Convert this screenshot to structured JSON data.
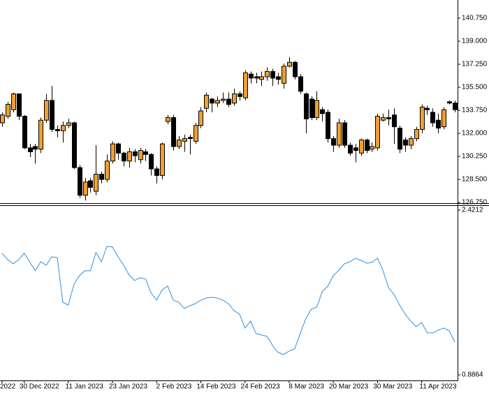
{
  "chart_data": [
    {
      "type": "candlestick",
      "up_color": "#f0a030",
      "down_color": "#000000",
      "outline_color": "#000000",
      "ylim": [
        126.7,
        142.13
      ],
      "yticks": [
        {
          "value": 140.75,
          "label": "140.750"
        },
        {
          "value": 139,
          "label": "139.000"
        },
        {
          "value": 137.25,
          "label": "137.250"
        },
        {
          "value": 135.5,
          "label": "135.500"
        },
        {
          "value": 133.75,
          "label": "133.750"
        },
        {
          "value": 132,
          "label": "132.000"
        },
        {
          "value": 130.25,
          "label": "130.250"
        },
        {
          "value": 128.5,
          "label": "128.500"
        },
        {
          "value": 126.75,
          "label": "126.750"
        }
      ],
      "open": [
        132.8,
        133.3,
        133.8,
        135.0,
        133.3,
        130.9,
        131.0,
        130.8,
        133.0,
        134.5,
        132.3,
        132.2,
        132.6,
        132.8,
        129.4,
        127.3,
        128.4,
        127.6,
        128.9,
        128.5,
        129.9,
        131.2,
        130.5,
        129.9,
        130.6,
        130.0,
        130.6,
        130.4,
        129.3,
        128.8,
        132.9,
        133.2,
        131.0,
        131.4,
        131.7,
        131.4,
        132.6,
        133.9,
        134.6,
        134.3,
        134.5,
        134.6,
        134.3,
        135.0,
        134.7,
        136.5,
        136.3,
        136.1,
        136.3,
        136.7,
        136.3,
        135.8,
        137.1,
        137.4,
        136.3,
        135.0,
        134.6,
        133.2,
        133.8,
        133.6,
        131.6,
        131.1,
        132.8,
        131.1,
        130.9,
        130.5,
        131.5,
        130.8,
        130.9,
        133.0,
        133.2,
        133.4,
        132.4,
        131.5,
        131.1,
        131.6,
        132.3,
        133.9,
        133.6,
        133.0,
        132.5,
        134.4,
        134.3
      ],
      "high": [
        133.6,
        134.4,
        135.1,
        135.0,
        133.4,
        131.2,
        131.2,
        133.2,
        135.0,
        135.6,
        132.6,
        132.9,
        133.1,
        132.9,
        129.6,
        128.6,
        128.6,
        131.1,
        129.1,
        130.4,
        131.4,
        131.3,
        130.6,
        130.9,
        130.8,
        130.9,
        130.8,
        130.5,
        129.5,
        131.3,
        133.4,
        133.4,
        131.8,
        131.9,
        131.9,
        132.8,
        134.0,
        135.1,
        134.7,
        134.8,
        135.1,
        135.1,
        135.4,
        135.2,
        136.8,
        136.7,
        136.6,
        136.7,
        137.0,
        136.9,
        136.6,
        137.3,
        137.8,
        137.5,
        136.5,
        135.1,
        134.8,
        135.2,
        134.0,
        133.8,
        131.8,
        133.1,
        133.0,
        131.3,
        131.2,
        131.6,
        131.6,
        131.3,
        133.5,
        133.5,
        133.8,
        133.9,
        132.6,
        131.7,
        131.8,
        132.5,
        134.2,
        134.1,
        133.9,
        133.5,
        134.0,
        134.5,
        134.5
      ],
      "low": [
        132.5,
        133.1,
        133.6,
        133.0,
        130.8,
        130.2,
        129.7,
        130.5,
        132.8,
        132.1,
        131.7,
        131.3,
        132.4,
        129.3,
        127.1,
        126.9,
        127.5,
        127.3,
        128.2,
        128.3,
        129.7,
        130.0,
        129.5,
        129.4,
        129.8,
        129.7,
        129.9,
        128.8,
        128.2,
        128.5,
        132.7,
        130.7,
        130.8,
        130.6,
        130.4,
        131.2,
        132.4,
        133.6,
        133.6,
        134.0,
        134.3,
        134.0,
        134.1,
        134.5,
        134.5,
        135.8,
        135.8,
        135.6,
        136.0,
        135.6,
        135.7,
        135.4,
        137.0,
        136.1,
        135.0,
        132.0,
        133.0,
        133.0,
        132.9,
        131.3,
        130.6,
        130.9,
        130.9,
        130.3,
        129.8,
        130.3,
        130.5,
        130.6,
        130.7,
        132.9,
        132.6,
        131.2,
        130.5,
        130.6,
        130.8,
        131.4,
        132.0,
        133.4,
        132.5,
        132.0,
        132.3,
        134.2,
        133.6
      ],
      "close": [
        133.4,
        134.2,
        135.0,
        133.3,
        130.9,
        130.6,
        130.8,
        133.0,
        134.5,
        132.3,
        132.2,
        132.6,
        132.8,
        129.4,
        127.3,
        128.3,
        127.9,
        128.9,
        128.5,
        129.9,
        131.2,
        130.5,
        129.9,
        130.6,
        130.3,
        130.7,
        130.4,
        129.3,
        128.8,
        131.2,
        133.2,
        131.0,
        131.5,
        131.6,
        131.6,
        132.6,
        133.7,
        134.9,
        134.3,
        134.5,
        134.6,
        134.2,
        135.0,
        134.8,
        136.6,
        136.2,
        136.2,
        136.3,
        136.7,
        136.2,
        136.1,
        137.1,
        137.4,
        136.3,
        135.2,
        133.1,
        133.2,
        134.5,
        133.5,
        131.6,
        131.1,
        132.8,
        131.1,
        130.5,
        130.7,
        131.5,
        130.7,
        131.0,
        133.3,
        133.2,
        133.1,
        132.5,
        130.8,
        131.1,
        131.6,
        132.3,
        134.0,
        133.8,
        132.8,
        132.4,
        133.8,
        134.3,
        133.8
      ]
    },
    {
      "type": "line",
      "ylim": [
        0.8344,
        2.4667
      ],
      "yticks": [
        {
          "value": 2.4212,
          "label": "2.4212"
        },
        {
          "value": 0.8864,
          "label": "0.8864"
        }
      ],
      "categories": [
        "2022",
        null,
        null,
        null,
        "30 Dec 2022",
        null,
        null,
        null,
        null,
        null,
        null,
        null,
        "11 Jan 2023",
        null,
        null,
        null,
        null,
        null,
        null,
        null,
        "23 Jan 2023",
        null,
        null,
        null,
        null,
        null,
        null,
        null,
        "2 Feb 2023",
        null,
        null,
        null,
        null,
        null,
        null,
        null,
        "14 Feb 2023",
        null,
        null,
        null,
        null,
        null,
        null,
        null,
        "24 Feb 2023",
        null,
        null,
        null,
        null,
        null,
        null,
        null,
        "8 Mar 2023",
        null,
        null,
        null,
        null,
        null,
        null,
        null,
        "20 Mar 2023",
        null,
        null,
        null,
        null,
        null,
        null,
        null,
        "30 Mar 2023",
        null,
        null,
        null,
        null,
        null,
        null,
        null,
        "11 Apr 2023",
        null,
        null,
        null,
        null,
        null,
        null
      ],
      "series": [
        {
          "color": "#2f8fdc",
          "values": [
            2.018,
            1.96,
            1.921,
            1.96,
            2.018,
            1.94,
            1.856,
            1.94,
            1.908,
            1.986,
            1.979,
            1.563,
            1.537,
            1.726,
            1.81,
            1.856,
            1.856,
            2.025,
            1.94,
            2.083,
            2.077,
            1.986,
            1.908,
            1.817,
            1.765,
            1.791,
            1.778,
            1.648,
            1.583,
            1.68,
            1.713,
            1.583,
            1.563,
            1.505,
            1.531,
            1.55,
            1.583,
            1.602,
            1.609,
            1.602,
            1.583,
            1.55,
            1.485,
            1.453,
            1.323,
            1.388,
            1.271,
            1.258,
            1.245,
            1.16,
            1.095,
            1.076,
            1.108,
            1.128,
            1.271,
            1.407,
            1.498,
            1.518,
            1.661,
            1.713,
            1.81,
            1.862,
            1.921,
            1.94,
            1.973,
            1.953,
            1.927,
            1.934,
            1.973,
            1.856,
            1.7,
            1.635,
            1.537,
            1.453,
            1.388,
            1.336,
            1.375,
            1.277,
            1.277,
            1.303,
            1.323,
            1.297,
            1.193
          ]
        }
      ]
    }
  ]
}
